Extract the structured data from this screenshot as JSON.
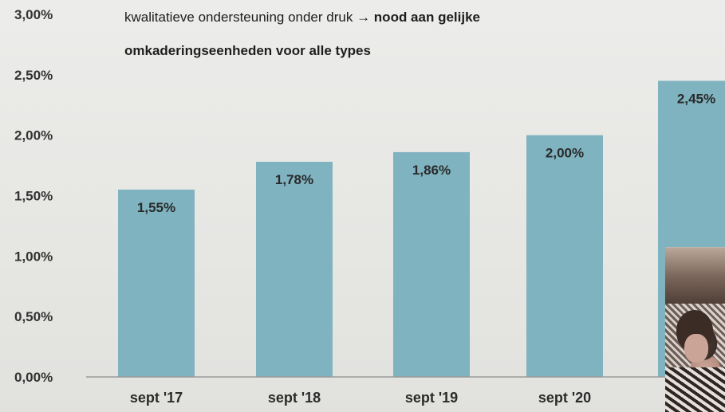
{
  "caption": {
    "line1_regular": "kwalitatieve ondersteuning onder druk → ",
    "line1_bold": "nood aan gelijke",
    "line2_bold": "omkaderingseenheden voor alle types"
  },
  "colors": {
    "bar": "#7fb3c0",
    "axis": "#9a9a9a",
    "background": "#e8e8e6"
  },
  "chart_data": {
    "type": "bar",
    "title": "",
    "xlabel": "",
    "ylabel": "",
    "ylim": [
      0,
      3
    ],
    "grid": false,
    "y_ticks": [
      "0,00%",
      "0,50%",
      "1,00%",
      "1,50%",
      "2,00%",
      "2,50%",
      "3,00%"
    ],
    "y_tick_values": [
      0,
      0.5,
      1.0,
      1.5,
      2.0,
      2.5,
      3.0
    ],
    "categories": [
      "sept '17",
      "sept '18",
      "sept '19",
      "sept '20",
      ""
    ],
    "values": [
      1.55,
      1.78,
      1.86,
      2.0,
      2.45
    ],
    "value_labels": [
      "1,55%",
      "1,78%",
      "1,86%",
      "2,00%",
      "2,45%"
    ]
  }
}
